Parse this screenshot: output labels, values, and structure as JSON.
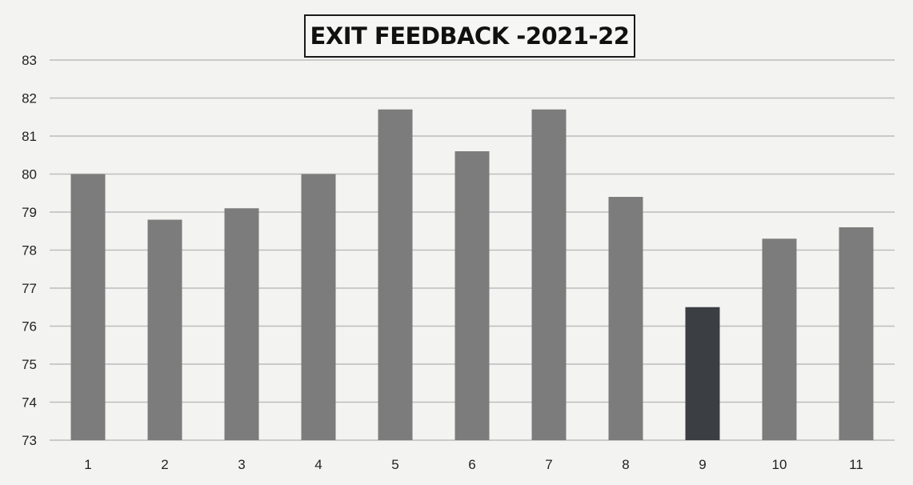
{
  "chart_data": {
    "type": "bar",
    "title": "EXIT FEEDBACK -2021-22",
    "xlabel": "",
    "ylabel": "",
    "categories": [
      "1",
      "2",
      "3",
      "4",
      "5",
      "6",
      "7",
      "8",
      "9",
      "10",
      "11"
    ],
    "values": [
      80.0,
      78.8,
      79.1,
      80.0,
      81.7,
      80.6,
      81.7,
      79.4,
      76.5,
      78.3,
      78.6
    ],
    "ylim": [
      73,
      83
    ],
    "yticks": [
      "73",
      "74",
      "75",
      "76",
      "77",
      "78",
      "79",
      "80",
      "81",
      "82",
      "83"
    ],
    "grid": true,
    "legend": "none",
    "colors": {
      "bar": "#7c7c7c",
      "bar_highlight": "#3b3f44",
      "grid": "#bdbdbd",
      "axis_text": "#222222"
    }
  }
}
